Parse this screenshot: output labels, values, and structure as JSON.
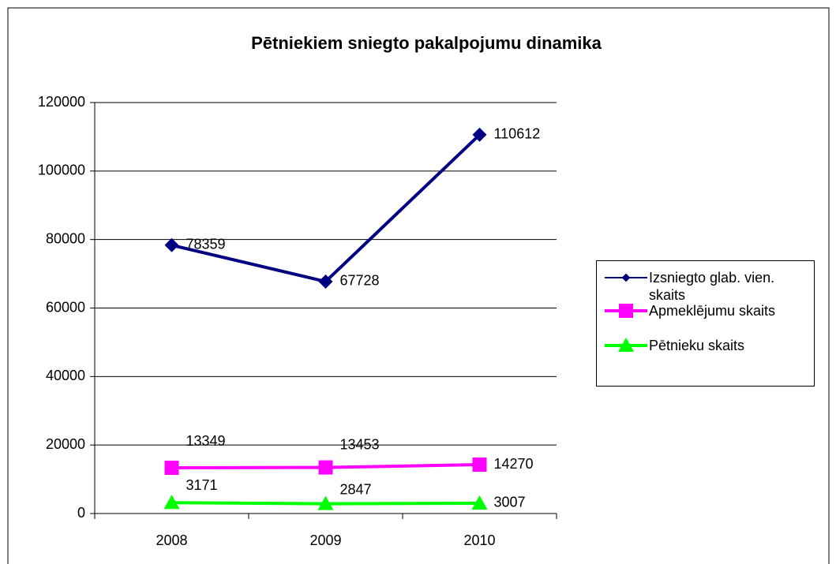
{
  "chart_data": {
    "type": "line",
    "title": "Pētniekiem sniegto pakalpojumu dinamika",
    "categories": [
      "2008",
      "2009",
      "2010"
    ],
    "series": [
      {
        "name": "Izsniegto glab. vien. skaits",
        "color": "#000080",
        "marker": "diamond",
        "values": [
          78359,
          67728,
          110612
        ]
      },
      {
        "name": "Apmeklējumu skaits",
        "color": "#ff00ff",
        "marker": "square",
        "values": [
          13349,
          13453,
          14270
        ]
      },
      {
        "name": "Pētnieku skaits",
        "color": "#00ff00",
        "marker": "triangle",
        "values": [
          3171,
          2847,
          3007
        ]
      }
    ],
    "ylim": [
      0,
      120000
    ],
    "yticks": [
      0,
      20000,
      40000,
      60000,
      80000,
      100000,
      120000
    ],
    "grid": true,
    "legend": "right"
  }
}
